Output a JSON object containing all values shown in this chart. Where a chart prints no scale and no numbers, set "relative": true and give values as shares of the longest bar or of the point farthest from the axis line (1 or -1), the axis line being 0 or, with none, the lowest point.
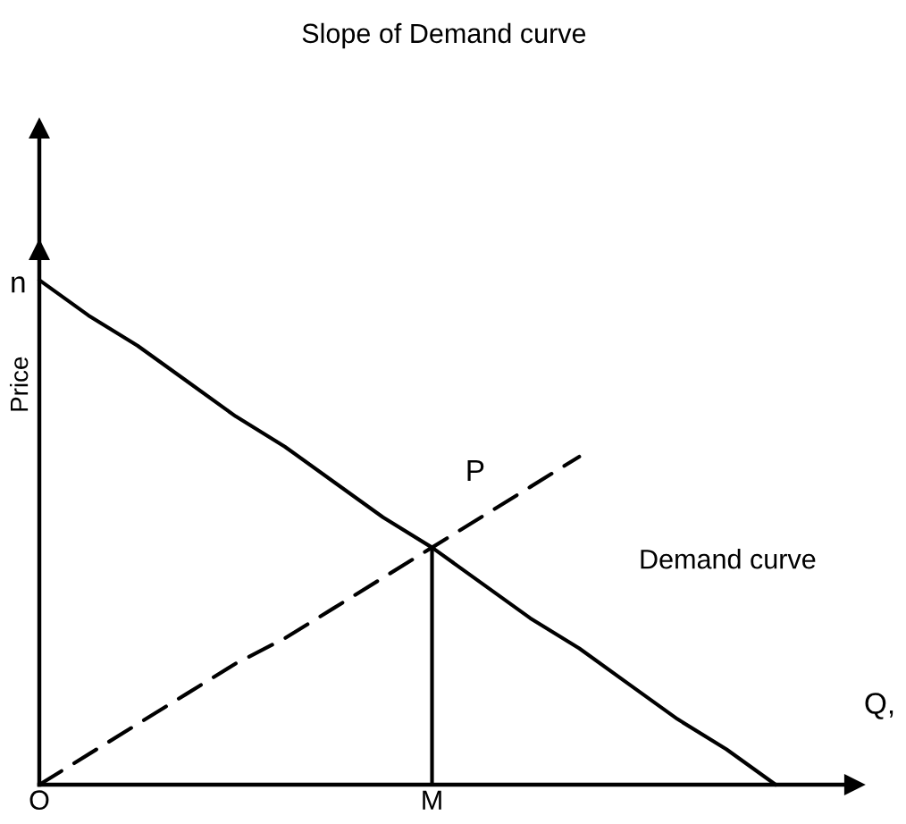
{
  "chart_data": {
    "type": "line",
    "title": "Slope of Demand curve",
    "xlabel": "Q,",
    "ylabel": "Price",
    "relative": true,
    "categories": [
      "O",
      null,
      null,
      null,
      null,
      null,
      null,
      null,
      "M",
      null,
      null,
      null,
      null,
      null,
      null,
      null
    ],
    "series": [
      {
        "name": "Demand curve",
        "color": "#000000",
        "values": [
          1,
          0.93,
          0.87,
          0.8,
          0.73,
          0.67,
          0.6,
          0.53,
          0.47,
          0.4,
          0.33,
          0.27,
          0.2,
          0.13,
          0.07,
          0
        ]
      },
      {
        "color": "#000000",
        "line_style": "dashed",
        "values": [
          0,
          0.06,
          0.12,
          0.18,
          0.24,
          0.29,
          0.35,
          0.41,
          0.47,
          0.53,
          0.59,
          0.65,
          null,
          null,
          null,
          null
        ]
      },
      {
        "color": "#000000",
        "x": [
          "M",
          "M"
        ],
        "values": [
          0,
          0.47
        ]
      }
    ],
    "annotations": [
      "n",
      "P"
    ]
  }
}
